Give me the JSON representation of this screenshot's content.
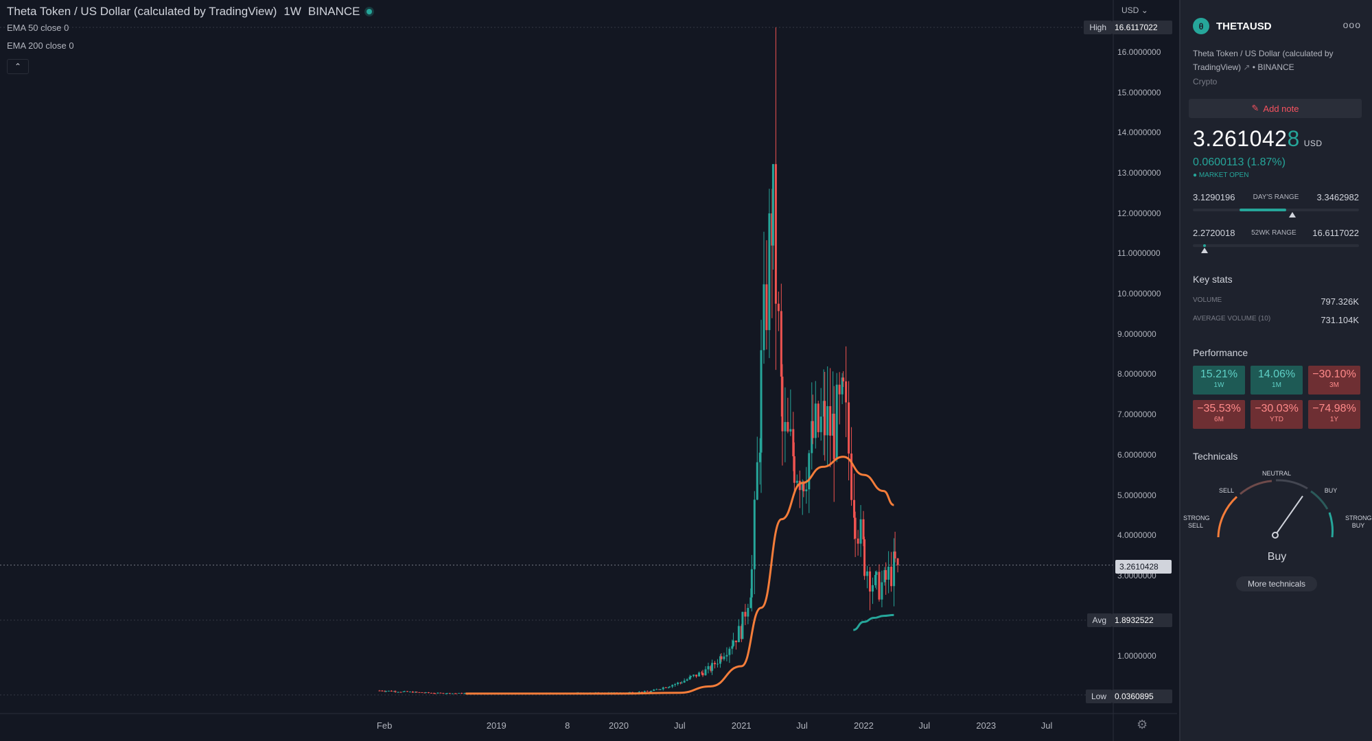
{
  "chart_header": {
    "title": "Theta Token / US Dollar (calculated by TradingView)",
    "interval": "1W",
    "exchange": "BINANCE",
    "indicators": [
      "EMA 50 close 0",
      "EMA 200 close 0"
    ]
  },
  "axis": {
    "currency_label": "USD",
    "y_ticks": [
      "16.0000000",
      "15.0000000",
      "14.0000000",
      "13.0000000",
      "12.0000000",
      "11.0000000",
      "10.0000000",
      "9.0000000",
      "8.0000000",
      "7.0000000",
      "6.0000000",
      "5.0000000",
      "4.0000000",
      "3.0000000",
      "1.0000000"
    ],
    "x_ticks": [
      "Feb",
      "2019",
      "8",
      "2020",
      "Jul",
      "2021",
      "Jul",
      "2022",
      "Jul",
      "2023",
      "Jul"
    ]
  },
  "tags": {
    "high_label": "High",
    "high_value": "16.6117022",
    "avg_label": "Avg",
    "avg_value": "1.8932522",
    "low_label": "Low",
    "low_value": "0.0360895",
    "last_price": "3.2610428"
  },
  "chart_data": {
    "type": "candlestick",
    "title": "Theta Token / US Dollar (calculated by TradingView)",
    "interval": "1W",
    "y_range": [
      0,
      17
    ],
    "x_range": [
      "2018-01",
      "2023-10"
    ],
    "high": 16.6117022,
    "low": 0.0360895,
    "last": 3.2610428,
    "avg": 1.8932522,
    "price_series": {
      "name": "THETAUSD",
      "x": [
        "2018-01",
        "2018-07",
        "2019-01",
        "2019-07",
        "2020-01",
        "2020-04",
        "2020-07",
        "2020-10",
        "2021-01",
        "2021-02",
        "2021-03",
        "2021-04",
        "2021-05",
        "2021-06",
        "2021-07",
        "2021-08",
        "2021-09",
        "2021-10",
        "2021-11",
        "2021-12",
        "2022-01",
        "2022-02",
        "2022-03",
        "2022-04"
      ],
      "y": [
        0.15,
        0.08,
        0.07,
        0.08,
        0.09,
        0.12,
        0.35,
        0.7,
        1.7,
        3.1,
        8.0,
        12.5,
        6.5,
        6.0,
        5.5,
        6.4,
        6.8,
        6.6,
        7.2,
        4.8,
        3.4,
        2.7,
        2.8,
        3.26
      ]
    },
    "ema50": {
      "x": [
        "2018-10",
        "2019-07",
        "2020-01",
        "2020-07",
        "2020-10",
        "2021-01",
        "2021-03",
        "2021-05",
        "2021-07",
        "2021-09",
        "2021-11",
        "2022-01",
        "2022-03",
        "2022-04"
      ],
      "y": [
        0.07,
        0.07,
        0.07,
        0.09,
        0.25,
        0.75,
        2.2,
        4.4,
        5.3,
        5.7,
        5.95,
        5.5,
        5.1,
        4.75
      ]
    },
    "ema200": {
      "x": [
        "2021-12",
        "2022-01",
        "2022-02",
        "2022-03",
        "2022-04"
      ],
      "y": [
        1.65,
        1.85,
        1.95,
        2.0,
        2.02
      ]
    }
  },
  "panel": {
    "symbol": "THETAUSD",
    "more": "ooo",
    "description_line1": "Theta Token / US Dollar (calculated by",
    "description_line2": "TradingView)",
    "exchange": "BINANCE",
    "category": "Crypto",
    "add_note": "Add note",
    "price_main": "3.261042",
    "price_last_digit": "8",
    "currency": "USD",
    "change": "0.0600113 (1.87%)",
    "market_status": "MARKET OPEN",
    "days_range": {
      "low": "3.1290196",
      "label": "DAY'S RANGE",
      "high": "3.3462982",
      "fill_start": 0.28,
      "fill_end": 0.56,
      "marker": 0.6
    },
    "wk52_range": {
      "low": "2.2720018",
      "label": "52WK RANGE",
      "high": "16.6117022",
      "fill_start": 0.06,
      "fill_end": 0.08,
      "marker": 0.07
    },
    "key_stats": {
      "title": "Key stats",
      "volume_label": "VOLUME",
      "volume_value": "797.326K",
      "avg_volume_label": "AVERAGE VOLUME (10)",
      "avg_volume_value": "731.104K"
    },
    "performance": {
      "title": "Performance",
      "items": [
        {
          "value": "15.21%",
          "label": "1W",
          "sign": "pos"
        },
        {
          "value": "14.06%",
          "label": "1M",
          "sign": "pos"
        },
        {
          "value": "−30.10%",
          "label": "3M",
          "sign": "neg"
        },
        {
          "value": "−35.53%",
          "label": "6M",
          "sign": "neg"
        },
        {
          "value": "−30.03%",
          "label": "YTD",
          "sign": "neg"
        },
        {
          "value": "−74.98%",
          "label": "1Y",
          "sign": "neg"
        }
      ]
    },
    "technicals": {
      "title": "Technicals",
      "neutral": "NEUTRAL",
      "sell": "SELL",
      "buy": "BUY",
      "strong_sell_1": "STRONG",
      "strong_sell_2": "SELL",
      "strong_buy_1": "STRONG",
      "strong_buy_2": "BUY",
      "result": "Buy",
      "more": "More technicals"
    },
    "colors": {
      "up": "#26a69a",
      "down": "#ef5350",
      "ema50": "#f57d3a",
      "ema200": "#26a69a"
    }
  }
}
